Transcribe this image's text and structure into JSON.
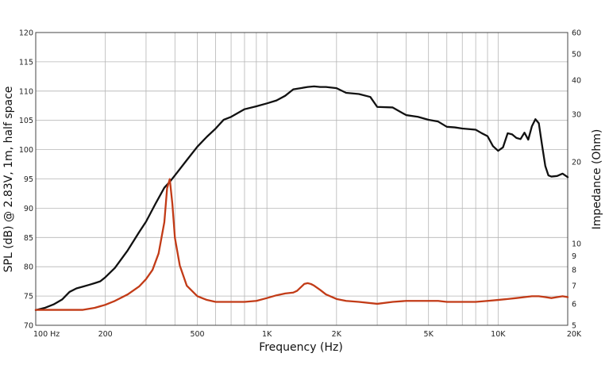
{
  "chart_data": {
    "type": "line",
    "xlabel": "Frequency (Hz)",
    "ylabel": "SPL (dB) @ 2.83V, 1m, half space",
    "y2label": "Impedance (Ohm)",
    "x_scale": "log",
    "xlim": [
      100,
      20000
    ],
    "ylim": [
      70,
      120
    ],
    "y2_scale": "log",
    "y2lim": [
      5,
      60
    ],
    "grid": true,
    "x_ticks": [
      {
        "v": 100,
        "label": "100  Hz"
      },
      {
        "v": 200,
        "label": "200"
      },
      {
        "v": 500,
        "label": "500"
      },
      {
        "v": 1000,
        "label": "1K"
      },
      {
        "v": 2000,
        "label": "2K"
      },
      {
        "v": 5000,
        "label": "5K"
      },
      {
        "v": 10000,
        "label": "10K"
      },
      {
        "v": 20000,
        "label": "20K"
      }
    ],
    "y_ticks": [
      70,
      75,
      80,
      85,
      90,
      95,
      100,
      105,
      110,
      115,
      120
    ],
    "y2_ticks": [
      5,
      6,
      7,
      8,
      9,
      10,
      20,
      30,
      40,
      50,
      60
    ],
    "colors": {
      "spl": "#111111",
      "impedance": "#c23b17",
      "grid": "#b5b5b5",
      "frame": "#444444"
    },
    "series": [
      {
        "key": "spl",
        "axis": "left",
        "x": [
          100,
          110,
          120,
          130,
          140,
          150,
          160,
          170,
          180,
          190,
          200,
          220,
          250,
          280,
          300,
          330,
          360,
          380,
          400,
          450,
          500,
          550,
          600,
          650,
          700,
          800,
          900,
          1000,
          1100,
          1200,
          1300,
          1400,
          1500,
          1600,
          1700,
          1800,
          2000,
          2200,
          2500,
          2800,
          3000,
          3500,
          4000,
          4500,
          5000,
          5500,
          6000,
          6500,
          7000,
          7500,
          8000,
          8500,
          9000,
          9500,
          10000,
          10500,
          11000,
          11500,
          12000,
          12500,
          13000,
          13500,
          14000,
          14500,
          15000,
          15500,
          16000,
          16500,
          17000,
          18000,
          19000,
          20000
        ],
        "y": [
          72.6,
          73.0,
          73.6,
          74.4,
          75.7,
          76.3,
          76.6,
          76.9,
          77.2,
          77.5,
          78.2,
          79.8,
          82.8,
          85.9,
          87.7,
          90.8,
          93.5,
          94.5,
          95.6,
          98.2,
          100.5,
          102.2,
          103.6,
          105.1,
          105.6,
          106.9,
          107.4,
          107.9,
          108.4,
          109.2,
          110.3,
          110.5,
          110.7,
          110.8,
          110.7,
          110.7,
          110.5,
          109.7,
          109.5,
          109.0,
          107.3,
          107.2,
          105.9,
          105.6,
          105.1,
          104.8,
          103.9,
          103.8,
          103.6,
          103.5,
          103.4,
          102.8,
          102.3,
          100.6,
          99.8,
          100.4,
          102.8,
          102.6,
          102.0,
          101.8,
          102.9,
          101.7,
          104.0,
          105.2,
          104.5,
          100.7,
          97.2,
          95.6,
          95.4,
          95.5,
          95.9,
          95.3
        ]
      },
      {
        "key": "impedance",
        "axis": "right",
        "x": [
          100,
          130,
          160,
          180,
          200,
          220,
          250,
          280,
          300,
          320,
          340,
          360,
          370,
          380,
          390,
          400,
          420,
          450,
          500,
          550,
          600,
          700,
          800,
          900,
          1000,
          1100,
          1200,
          1300,
          1350,
          1400,
          1450,
          1500,
          1550,
          1600,
          1700,
          1800,
          2000,
          2200,
          2500,
          3000,
          3500,
          4000,
          4500,
          5000,
          5500,
          6000,
          7000,
          8000,
          9000,
          10000,
          11000,
          12000,
          13000,
          14000,
          15000,
          16000,
          17000,
          18000,
          19000,
          20000
        ],
        "y": [
          5.7,
          5.7,
          5.7,
          5.8,
          5.95,
          6.15,
          6.5,
          6.95,
          7.4,
          8.0,
          9.2,
          12.0,
          16.0,
          17.3,
          14.0,
          10.5,
          8.3,
          7.0,
          6.4,
          6.2,
          6.1,
          6.1,
          6.1,
          6.15,
          6.3,
          6.45,
          6.55,
          6.6,
          6.7,
          6.9,
          7.1,
          7.15,
          7.1,
          7.0,
          6.75,
          6.5,
          6.25,
          6.15,
          6.1,
          6.0,
          6.1,
          6.15,
          6.15,
          6.15,
          6.15,
          6.1,
          6.1,
          6.1,
          6.15,
          6.2,
          6.25,
          6.3,
          6.35,
          6.4,
          6.4,
          6.35,
          6.3,
          6.35,
          6.4,
          6.35
        ]
      }
    ]
  }
}
